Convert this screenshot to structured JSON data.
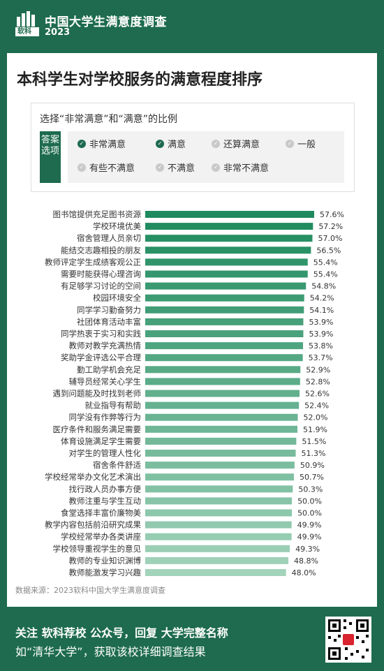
{
  "header": {
    "brand": "中国大学生满意度调查",
    "year": "2023",
    "logo_text": "软科"
  },
  "title": "本科学生对学校服务的满意程度排序",
  "legend": {
    "title": "选择“非常满意”和“满意”的比例",
    "tag": "答案选项",
    "options": [
      {
        "label": "非常满意",
        "checked": true
      },
      {
        "label": "满意",
        "checked": true
      },
      {
        "label": "还算满意",
        "checked": false
      },
      {
        "label": "一般",
        "checked": false
      },
      {
        "label": "有些不满意",
        "checked": false
      },
      {
        "label": "不满意",
        "checked": false
      },
      {
        "label": "非常不满意",
        "checked": false
      }
    ]
  },
  "chart_data": {
    "type": "bar",
    "orientation": "horizontal",
    "categories": [
      "图书馆提供充足图书资源",
      "学校环境优美",
      "宿舍管理人员亲切",
      "能结交志趣相投的朋友",
      "教师评定学生成绩客观公正",
      "需要时能获得心理咨询",
      "有足够学习讨论的空间",
      "校园环境安全",
      "同学学习勤奋努力",
      "社团体育活动丰富",
      "同学热衷于实习和实践",
      "教师对教学充满热情",
      "奖助学金评选公平合理",
      "勤工助学机会充足",
      "辅导员经常关心学生",
      "遇到问题能及时找到老师",
      "就业指导有帮助",
      "同学没有作弊等行为",
      "医疗条件和服务满足需要",
      "体育设施满足学生需要",
      "对学生的管理人性化",
      "宿舍条件舒适",
      "学校经常举办文化艺术演出",
      "找行政人员办事方便",
      "教师注重与学生互动",
      "食堂选择丰富价廉物美",
      "教学内容包括前沿研究成果",
      "学校经常举办各类讲座",
      "学校领导重视学生的意见",
      "教师的专业知识渊博",
      "教师能激发学习兴趣"
    ],
    "values": [
      57.6,
      57.2,
      57.0,
      56.5,
      55.4,
      55.4,
      54.8,
      54.2,
      54.1,
      53.9,
      53.9,
      53.8,
      53.7,
      52.9,
      52.8,
      52.6,
      52.4,
      52.0,
      51.9,
      51.5,
      51.3,
      50.9,
      50.7,
      50.3,
      50.0,
      50.0,
      49.9,
      49.9,
      49.3,
      48.8,
      48.0
    ],
    "value_labels": [
      "57.6%",
      "57.2%",
      "57.0%",
      "56.5%",
      "55.4%",
      "55.4%",
      "54.8%",
      "54.2%",
      "54.1%",
      "53.9%",
      "53.9%",
      "53.8%",
      "53.7%",
      "52.9%",
      "52.8%",
      "52.6%",
      "52.4%",
      "52.0%",
      "51.9%",
      "51.5%",
      "51.3%",
      "50.9%",
      "50.7%",
      "50.3%",
      "50.0%",
      "50.0%",
      "49.9%",
      "49.9%",
      "49.3%",
      "48.8%",
      "48.0%"
    ],
    "color_start": "#1e8a5e",
    "color_end": "#a3d3bb"
  },
  "source": "数据来源：2023软科中国大学生满意度调查",
  "footer": {
    "line1": "关注 软科荐校 公众号，回复 大学完整名称",
    "line2": "如“清华大学”，获取该校详细调查结果"
  }
}
